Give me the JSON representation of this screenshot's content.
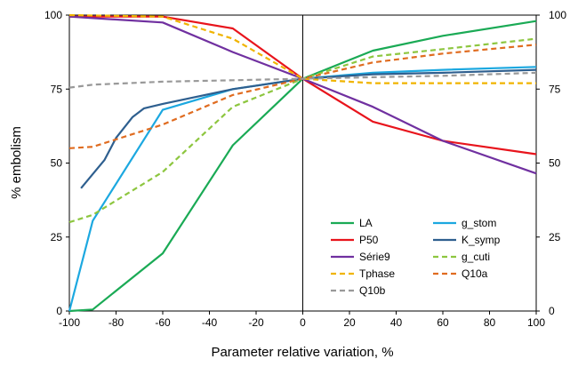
{
  "chart_data": {
    "type": "line",
    "xlabel": "Parameter relative variation, %",
    "ylabel": "% embolism",
    "xlim": [
      -100,
      100
    ],
    "ylim": [
      0,
      100
    ],
    "x_ticks": [
      "-100",
      "-80",
      "-60",
      "-40",
      "-20",
      "0",
      "20",
      "40",
      "60",
      "80",
      "100"
    ],
    "y_ticks": [
      "0",
      "25",
      "50",
      "75",
      "100"
    ],
    "y2_ticks": [
      "0",
      "25",
      "50",
      "75",
      "100"
    ],
    "grid": false,
    "reference_line_x": 0,
    "legend_position": "lower-right",
    "series": [
      {
        "name": "LA",
        "color": "#1aaa55",
        "dash": false,
        "points": [
          [
            -100,
            0
          ],
          [
            -90,
            0.5
          ],
          [
            -60,
            19.5
          ],
          [
            -30,
            56
          ],
          [
            0,
            78.5
          ],
          [
            30,
            88
          ],
          [
            60,
            93
          ],
          [
            100,
            98
          ]
        ]
      },
      {
        "name": "g_stom",
        "color": "#1ca8e0",
        "dash": false,
        "points": [
          [
            -100,
            0
          ],
          [
            -90,
            30.5
          ],
          [
            -60,
            68
          ],
          [
            -30,
            75
          ],
          [
            0,
            78.5
          ],
          [
            30,
            80.5
          ],
          [
            60,
            81.5
          ],
          [
            100,
            82.5
          ]
        ]
      },
      {
        "name": "P50",
        "color": "#e8141c",
        "dash": false,
        "points": [
          [
            -100,
            99.5
          ],
          [
            -60,
            99.5
          ],
          [
            -30,
            95.5
          ],
          [
            0,
            78.5
          ],
          [
            30,
            64
          ],
          [
            60,
            57.5
          ],
          [
            100,
            53
          ]
        ]
      },
      {
        "name": "K_symp",
        "color": "#2e5f8f",
        "dash": false,
        "points": [
          [
            -95,
            41.5
          ],
          [
            -85,
            51
          ],
          [
            -80,
            58.5
          ],
          [
            -73,
            65.5
          ],
          [
            -68,
            68.5
          ],
          [
            -60,
            70
          ],
          [
            -30,
            75
          ],
          [
            0,
            78.5
          ],
          [
            30,
            80
          ],
          [
            60,
            80.5
          ],
          [
            100,
            81.5
          ]
        ]
      },
      {
        "name": "Série9",
        "color": "#7030a0",
        "dash": false,
        "points": [
          [
            -100,
            99.5
          ],
          [
            -60,
            97.5
          ],
          [
            -30,
            87.5
          ],
          [
            0,
            78.5
          ],
          [
            30,
            69
          ],
          [
            60,
            57.5
          ],
          [
            100,
            46.5
          ]
        ]
      },
      {
        "name": "g_cuti",
        "color": "#8dc63f",
        "dash": true,
        "points": [
          [
            -100,
            30
          ],
          [
            -90,
            32.5
          ],
          [
            -60,
            47
          ],
          [
            -30,
            69
          ],
          [
            0,
            78.5
          ],
          [
            30,
            86
          ],
          [
            60,
            88.5
          ],
          [
            100,
            92
          ]
        ]
      },
      {
        "name": "Tphase",
        "color": "#f0b400",
        "dash": true,
        "points": [
          [
            -100,
            100
          ],
          [
            -60,
            99.5
          ],
          [
            -30,
            92
          ],
          [
            0,
            78.5
          ],
          [
            30,
            77
          ],
          [
            60,
            77
          ],
          [
            100,
            77
          ]
        ]
      },
      {
        "name": "Q10a",
        "color": "#e06c20",
        "dash": true,
        "points": [
          [
            -100,
            55
          ],
          [
            -90,
            55.5
          ],
          [
            -60,
            63
          ],
          [
            -30,
            73
          ],
          [
            0,
            78.5
          ],
          [
            30,
            84
          ],
          [
            60,
            87
          ],
          [
            100,
            90
          ]
        ]
      },
      {
        "name": "Q10b",
        "color": "#999999",
        "dash": true,
        "points": [
          [
            -100,
            75.5
          ],
          [
            -90,
            76.5
          ],
          [
            -60,
            77.5
          ],
          [
            -30,
            78
          ],
          [
            0,
            78.5
          ],
          [
            30,
            79
          ],
          [
            60,
            79.5
          ],
          [
            100,
            80.5
          ]
        ]
      }
    ]
  }
}
